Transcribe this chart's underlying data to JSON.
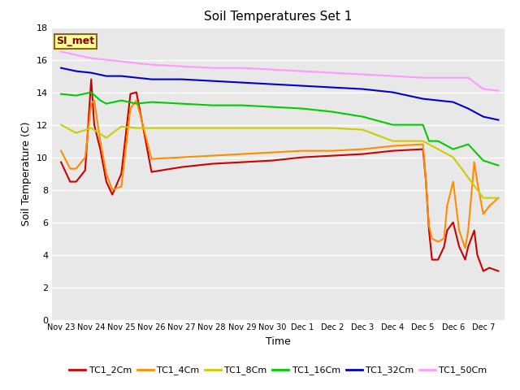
{
  "title": "Soil Temperatures Set 1",
  "xlabel": "Time",
  "ylabel": "Soil Temperature (C)",
  "ylim": [
    0,
    18
  ],
  "yticks": [
    0,
    2,
    4,
    6,
    8,
    10,
    12,
    14,
    16,
    18
  ],
  "fig_bg_color": "#ffffff",
  "plot_bg_color": "#e8e8e8",
  "grid_color": "#ffffff",
  "annotation_text": "SI_met",
  "annotation_bg": "#ffff99",
  "annotation_border": "#8b6914",
  "series": {
    "TC1_2Cm": {
      "color": "#cc0000",
      "lw": 1.5
    },
    "TC1_4Cm": {
      "color": "#ff8c00",
      "lw": 1.5
    },
    "TC1_8Cm": {
      "color": "#cccc00",
      "lw": 1.5
    },
    "TC1_16Cm": {
      "color": "#00cc00",
      "lw": 1.5
    },
    "TC1_32Cm": {
      "color": "#0000cc",
      "lw": 1.5
    },
    "TC1_50Cm": {
      "color": "#ff99ff",
      "lw": 1.5
    }
  },
  "xtick_labels": [
    "Nov 23",
    "Nov 24",
    "Nov 25",
    "Nov 26",
    "Nov 27",
    "Nov 28",
    "Nov 29",
    "Nov 30",
    "Dec 1",
    "Dec 2",
    "Dec 3",
    "Dec 4",
    "Dec 5",
    "Dec 6",
    "Dec 7"
  ],
  "xtick_positions": [
    0,
    1,
    2,
    3,
    4,
    5,
    6,
    7,
    8,
    9,
    10,
    11,
    12,
    13,
    14
  ],
  "TC1_2Cm_x": [
    0,
    0.3,
    0.5,
    0.8,
    1.0,
    1.1,
    1.3,
    1.5,
    1.7,
    2.0,
    2.3,
    2.5,
    3.0,
    4.0,
    5.0,
    6.0,
    7.0,
    8.0,
    9.0,
    10.0,
    11.0,
    12.0,
    12.1,
    12.2,
    12.3,
    12.5,
    12.7,
    12.8,
    13.0,
    13.2,
    13.4,
    13.5,
    13.7,
    13.8,
    14.0,
    14.2,
    14.5
  ],
  "TC1_2Cm_y": [
    9.7,
    8.5,
    8.5,
    9.2,
    14.8,
    12.0,
    10.5,
    8.5,
    7.7,
    9.0,
    13.9,
    14.0,
    9.1,
    9.4,
    9.6,
    9.7,
    9.8,
    10.0,
    10.1,
    10.2,
    10.4,
    10.5,
    8.5,
    5.5,
    3.7,
    3.7,
    4.5,
    5.5,
    6.0,
    4.5,
    3.7,
    4.5,
    5.5,
    4.0,
    3.0,
    3.2,
    3.0
  ],
  "TC1_4Cm_x": [
    0,
    0.3,
    0.5,
    0.8,
    1.0,
    1.1,
    1.3,
    1.5,
    1.7,
    2.0,
    2.3,
    2.5,
    3.0,
    4.0,
    5.0,
    6.0,
    7.0,
    8.0,
    9.0,
    10.0,
    11.0,
    12.0,
    12.1,
    12.2,
    12.3,
    12.5,
    12.7,
    12.8,
    13.0,
    13.2,
    13.4,
    13.5,
    13.7,
    13.8,
    14.0,
    14.2,
    14.5
  ],
  "TC1_4Cm_y": [
    10.4,
    9.3,
    9.3,
    10.0,
    13.3,
    13.5,
    11.0,
    9.0,
    8.0,
    8.2,
    13.0,
    13.5,
    9.9,
    10.0,
    10.1,
    10.2,
    10.3,
    10.4,
    10.4,
    10.5,
    10.7,
    10.8,
    8.5,
    5.8,
    5.0,
    4.8,
    5.0,
    7.0,
    8.5,
    5.5,
    4.4,
    5.5,
    9.7,
    8.5,
    6.5,
    7.0,
    7.5
  ],
  "TC1_8Cm_x": [
    0,
    0.5,
    1.0,
    1.5,
    2.0,
    2.5,
    3.0,
    4.0,
    5.0,
    6.0,
    7.0,
    8.0,
    9.0,
    10.0,
    11.0,
    12.0,
    13.0,
    14.0,
    14.5
  ],
  "TC1_8Cm_y": [
    12.0,
    11.5,
    11.8,
    11.2,
    11.9,
    11.8,
    11.8,
    11.8,
    11.8,
    11.8,
    11.8,
    11.8,
    11.8,
    11.7,
    11.0,
    11.0,
    10.0,
    7.5,
    7.5
  ],
  "TC1_16Cm_x": [
    0,
    0.5,
    1.0,
    1.3,
    1.5,
    2.0,
    2.5,
    3.0,
    4.0,
    5.0,
    6.0,
    7.0,
    8.0,
    9.0,
    10.0,
    11.0,
    12.0,
    12.2,
    12.5,
    13.0,
    13.5,
    14.0,
    14.5
  ],
  "TC1_16Cm_y": [
    13.9,
    13.8,
    14.0,
    13.5,
    13.3,
    13.5,
    13.3,
    13.4,
    13.3,
    13.2,
    13.2,
    13.1,
    13.0,
    12.8,
    12.5,
    12.0,
    12.0,
    11.0,
    11.0,
    10.5,
    10.8,
    9.8,
    9.5
  ],
  "TC1_32Cm_x": [
    0,
    0.5,
    1.0,
    1.5,
    2.0,
    2.5,
    3.0,
    4.0,
    5.0,
    6.0,
    7.0,
    8.0,
    9.0,
    10.0,
    11.0,
    12.0,
    12.5,
    13.0,
    13.5,
    14.0,
    14.5
  ],
  "TC1_32Cm_y": [
    15.5,
    15.3,
    15.2,
    15.0,
    15.0,
    14.9,
    14.8,
    14.8,
    14.7,
    14.6,
    14.5,
    14.4,
    14.3,
    14.2,
    14.0,
    13.6,
    13.5,
    13.4,
    13.0,
    12.5,
    12.3
  ],
  "TC1_50Cm_x": [
    0,
    0.5,
    1.0,
    1.5,
    2.0,
    2.5,
    3.0,
    4.0,
    5.0,
    6.0,
    7.0,
    8.0,
    9.0,
    10.0,
    11.0,
    12.0,
    12.5,
    13.0,
    13.5,
    14.0,
    14.5
  ],
  "TC1_50Cm_y": [
    16.5,
    16.3,
    16.1,
    16.0,
    15.9,
    15.8,
    15.7,
    15.6,
    15.5,
    15.5,
    15.4,
    15.3,
    15.2,
    15.1,
    15.0,
    14.9,
    14.9,
    14.9,
    14.9,
    14.2,
    14.1
  ]
}
